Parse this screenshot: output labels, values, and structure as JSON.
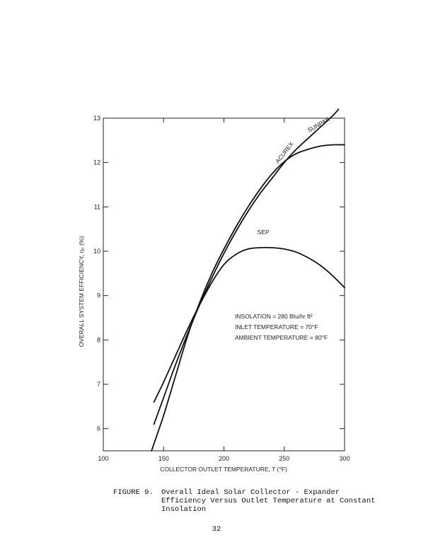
{
  "chart_data": {
    "type": "line",
    "xlabel": "COLLECTOR OUTLET TEMPERATURE, T (°F)",
    "ylabel": "OVERALL SYSTEM EFFICIENCY, η₀ (%)",
    "xlim": [
      100,
      300
    ],
    "ylim": [
      5.5,
      13
    ],
    "x_ticks": [
      100,
      150,
      200,
      250,
      300
    ],
    "y_ticks": [
      6,
      7,
      8,
      9,
      10,
      11,
      12,
      13
    ],
    "grid": false,
    "series": [
      {
        "name": "ACUREX",
        "x": [
          142,
          150,
          160,
          170,
          180,
          190,
          200,
          210,
          220,
          230,
          240,
          250,
          260,
          270,
          280,
          290,
          295
        ],
        "y": [
          6.1,
          6.7,
          7.45,
          8.15,
          8.8,
          9.4,
          9.95,
          10.45,
          10.9,
          11.3,
          11.65,
          12.0,
          12.3,
          12.55,
          12.8,
          13.05,
          13.2
        ]
      },
      {
        "name": "SUNPAK",
        "x": [
          140,
          150,
          160,
          170,
          180,
          190,
          200,
          210,
          220,
          230,
          240,
          250,
          260,
          270,
          280,
          290,
          300
        ],
        "y": [
          5.5,
          6.3,
          7.2,
          8.1,
          8.85,
          9.5,
          10.05,
          10.55,
          11.0,
          11.4,
          11.75,
          12.02,
          12.2,
          12.3,
          12.37,
          12.4,
          12.4
        ]
      },
      {
        "name": "SEP",
        "x": [
          142,
          150,
          160,
          170,
          180,
          190,
          200,
          210,
          220,
          230,
          240,
          250,
          260,
          270,
          280,
          290,
          300
        ],
        "y": [
          6.6,
          7.05,
          7.65,
          8.25,
          8.8,
          9.3,
          9.7,
          9.93,
          10.05,
          10.08,
          10.08,
          10.05,
          9.98,
          9.85,
          9.68,
          9.45,
          9.18
        ]
      }
    ],
    "annotations": {
      "insolation": "INSOLATION = 280 Btu/hr ft²",
      "inlet": "INLET TEMPERATURE = 70°F",
      "ambient": "AMBIENT TEMPERATURE = 80°F"
    }
  },
  "caption": {
    "figure_label": "FIGURE 9.",
    "text": "Overall Ideal Solar Collector - Expander Efficiency Versus Outlet Temperature at Constant Insolation"
  },
  "page_number": "32"
}
